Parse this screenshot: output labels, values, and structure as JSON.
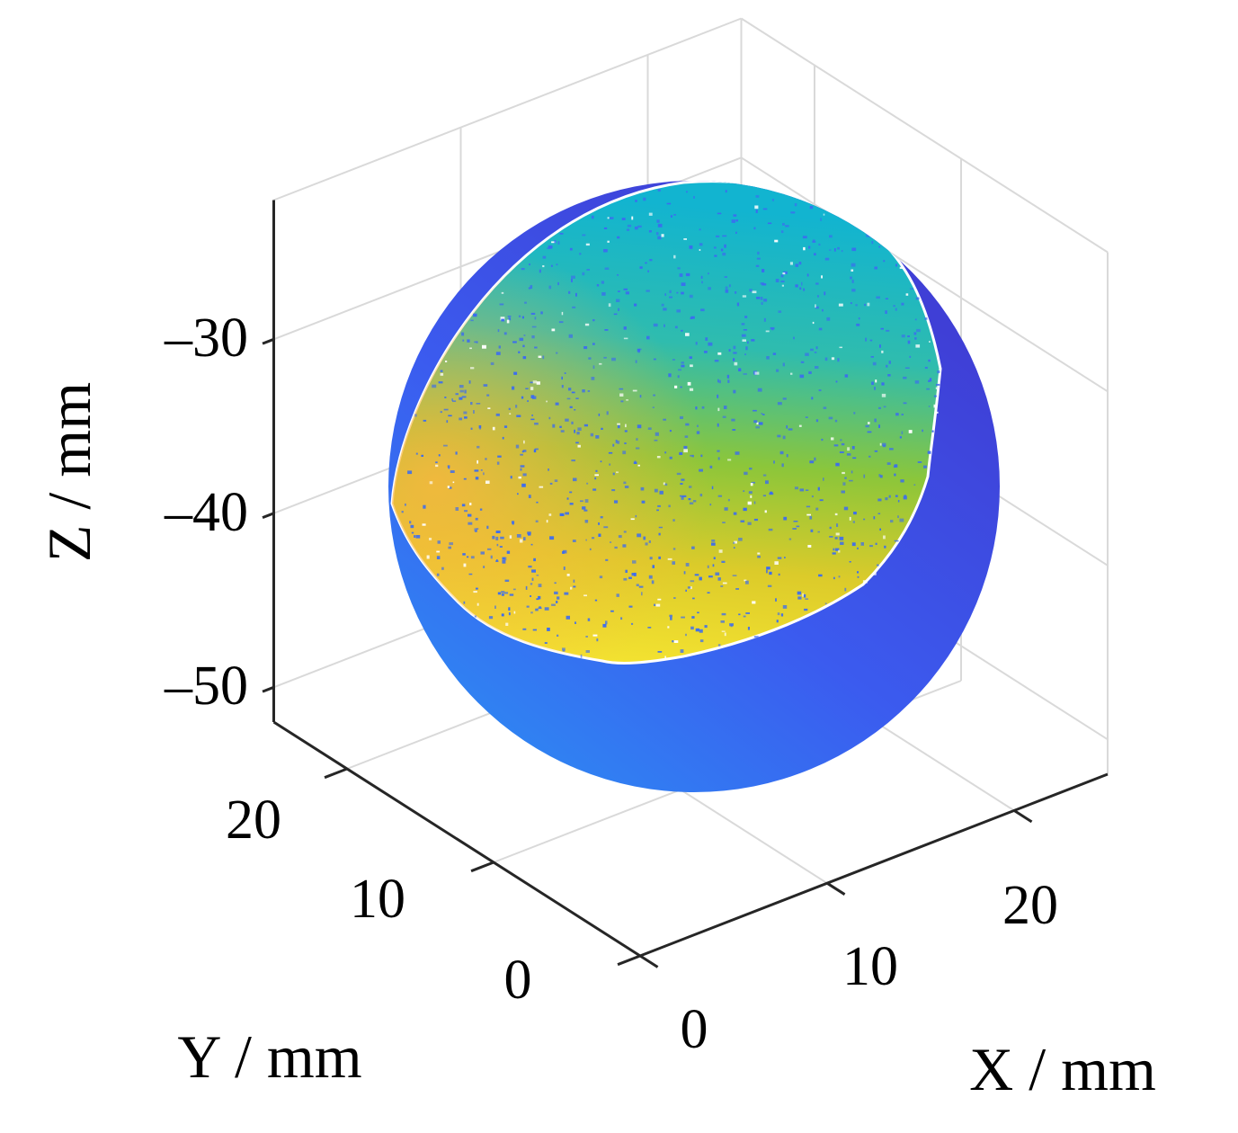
{
  "chart_data": {
    "type": "scatter",
    "subtype": "3d-point-cloud-sphere",
    "title": "",
    "xlabel": "X / mm",
    "ylabel": "Y / mm",
    "zlabel": "Z / mm",
    "x_ticks": [
      0,
      10,
      20
    ],
    "y_ticks": [
      0,
      10,
      20
    ],
    "z_ticks": [
      -30,
      -40,
      -50
    ],
    "x_tick_labels": [
      "0",
      "10",
      "20"
    ],
    "y_tick_labels": [
      "0",
      "10",
      "20"
    ],
    "z_tick_labels": [
      "–30",
      "–40",
      "–50"
    ],
    "xlim": [
      0,
      25
    ],
    "ylim": [
      0,
      25
    ],
    "zlim": [
      -52,
      -22
    ],
    "grid": true,
    "legend": "none",
    "sphere": {
      "center": [
        12.5,
        12.5,
        -38
      ],
      "radius": 12.5
    },
    "colormap": "parula",
    "colors": {
      "sphere_base_dark": "#3f3fd6",
      "sphere_base_light": "#2f86f3",
      "cap_top": "#12b4d0",
      "cap_mid": "#8cc63a",
      "cap_bottom": "#f3e230",
      "cap_edge_warm": "#fbb63f",
      "speckle": "#3b6cf0",
      "grid": "#d9d9d9",
      "axis": "#262626"
    }
  }
}
